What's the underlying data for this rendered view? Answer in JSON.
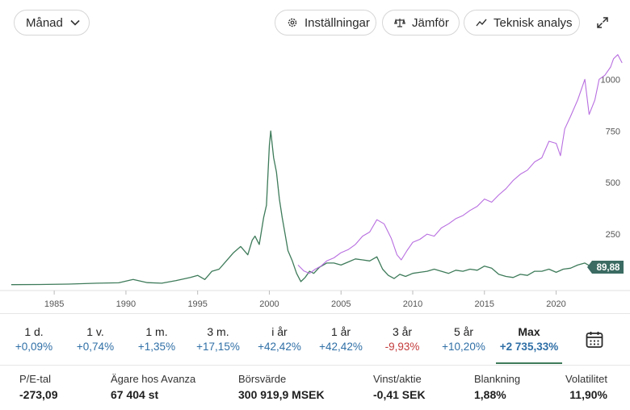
{
  "toolbar": {
    "period_label": "Månad",
    "settings_label": "Inställningar",
    "compare_label": "Jämför",
    "technical_label": "Teknisk analys"
  },
  "colors": {
    "stock": "#3e7b5a",
    "compare": "#b86ee0",
    "positive": "#2f6fa6",
    "negative": "#c43b3b",
    "grid": "#eeeeee"
  },
  "chart_data": {
    "type": "line",
    "x_ticks": [
      "1985",
      "1990",
      "1995",
      "2000",
      "2005",
      "2010",
      "2015",
      "2020"
    ],
    "y_ticks": [
      "250",
      "500",
      "750",
      "1000"
    ],
    "ylim": [
      0,
      1150
    ],
    "last_price_label": "89,88",
    "series": [
      {
        "color": "#3e7b5a",
        "x": [
          1982.0,
          1984.0,
          1986.0,
          1988.0,
          1989.5,
          1990.5,
          1991.5,
          1992.5,
          1993.5,
          1994.5,
          1995.0,
          1995.5,
          1996.0,
          1996.5,
          1997.0,
          1997.5,
          1998.0,
          1998.5,
          1998.8,
          1999.0,
          1999.3,
          1999.6,
          1999.8,
          2000.0,
          2000.1,
          2000.3,
          2000.5,
          2000.7,
          2000.9,
          2001.1,
          2001.3,
          2001.6,
          2001.9,
          2002.2,
          2002.5,
          2002.8,
          2003.1,
          2003.5,
          2004.0,
          2004.5,
          2005.0,
          2005.5,
          2006.0,
          2006.5,
          2007.0,
          2007.5,
          2007.9,
          2008.3,
          2008.7,
          2009.1,
          2009.5,
          2010.0,
          2010.5,
          2011.0,
          2011.5,
          2012.0,
          2012.5,
          2013.0,
          2013.5,
          2014.0,
          2014.5,
          2015.0,
          2015.5,
          2016.0,
          2016.5,
          2017.0,
          2017.5,
          2018.0,
          2018.5,
          2019.0,
          2019.5,
          2020.0,
          2020.5,
          2021.0,
          2021.5,
          2022.0,
          2022.5,
          2023.0,
          2023.5,
          2024.0,
          2024.5
        ],
        "values": [
          5,
          6,
          8,
          12,
          14,
          30,
          15,
          12,
          25,
          40,
          50,
          30,
          70,
          80,
          120,
          160,
          190,
          150,
          220,
          240,
          200,
          330,
          390,
          680,
          750,
          620,
          550,
          420,
          330,
          250,
          170,
          120,
          60,
          20,
          40,
          70,
          60,
          90,
          110,
          110,
          100,
          115,
          130,
          125,
          120,
          140,
          80,
          50,
          35,
          55,
          45,
          60,
          65,
          70,
          80,
          70,
          60,
          75,
          70,
          80,
          75,
          95,
          85,
          55,
          45,
          40,
          55,
          50,
          70,
          70,
          80,
          65,
          80,
          85,
          100,
          110,
          90,
          95,
          85,
          90,
          90
        ]
      },
      {
        "color": "#b86ee0",
        "x": [
          2002.0,
          2002.4,
          2002.8,
          2003.2,
          2003.6,
          2004.0,
          2004.5,
          2005.0,
          2005.5,
          2006.0,
          2006.5,
          2007.0,
          2007.5,
          2008.0,
          2008.5,
          2008.9,
          2009.2,
          2009.6,
          2010.0,
          2010.5,
          2011.0,
          2011.5,
          2012.0,
          2012.5,
          2013.0,
          2013.5,
          2014.0,
          2014.5,
          2015.0,
          2015.5,
          2016.0,
          2016.5,
          2017.0,
          2017.5,
          2018.0,
          2018.5,
          2019.0,
          2019.5,
          2020.0,
          2020.3,
          2020.6,
          2021.0,
          2021.5,
          2022.0,
          2022.3,
          2022.7,
          2023.0,
          2023.4,
          2023.8,
          2024.0,
          2024.3,
          2024.6
        ],
        "values": [
          100,
          72,
          60,
          80,
          95,
          120,
          135,
          160,
          175,
          200,
          240,
          260,
          320,
          300,
          230,
          150,
          125,
          170,
          210,
          225,
          250,
          240,
          280,
          300,
          325,
          340,
          365,
          385,
          420,
          405,
          440,
          470,
          510,
          540,
          560,
          600,
          620,
          700,
          690,
          630,
          760,
          820,
          900,
          1000,
          830,
          900,
          1000,
          1020,
          1060,
          1100,
          1120,
          1080
        ]
      }
    ]
  },
  "periods": [
    {
      "label": "1 d.",
      "value": "+0,09%",
      "sign": "pos"
    },
    {
      "label": "1 v.",
      "value": "+0,74%",
      "sign": "pos"
    },
    {
      "label": "1 m.",
      "value": "+1,35%",
      "sign": "pos"
    },
    {
      "label": "3 m.",
      "value": "+17,15%",
      "sign": "pos"
    },
    {
      "label": "i år",
      "value": "+42,42%",
      "sign": "pos"
    },
    {
      "label": "1 år",
      "value": "+42,42%",
      "sign": "pos"
    },
    {
      "label": "3 år",
      "value": "-9,93%",
      "sign": "neg"
    },
    {
      "label": "5 år",
      "value": "+10,20%",
      "sign": "pos"
    },
    {
      "label": "Max",
      "value": "+2 735,33%",
      "sign": "pos",
      "active": true
    }
  ],
  "stats": [
    {
      "label": "P/E-tal",
      "value": "-273,09"
    },
    {
      "label": "Ägare hos Avanza",
      "value": "67 404 st"
    },
    {
      "label": "Börsvärde",
      "value": "300 919,9 MSEK"
    },
    {
      "label": "Vinst/aktie",
      "value": "-0,41 SEK"
    },
    {
      "label": "Blankning",
      "value": "1,88%"
    },
    {
      "label": "Volatilitet",
      "value": "11,90%"
    }
  ],
  "icons": {
    "period_chevron": "chevron-down-icon",
    "settings": "gear-icon",
    "compare": "scale-icon",
    "technical": "chart-line-icon",
    "expand": "expand-icon",
    "calendar": "calendar-icon"
  }
}
